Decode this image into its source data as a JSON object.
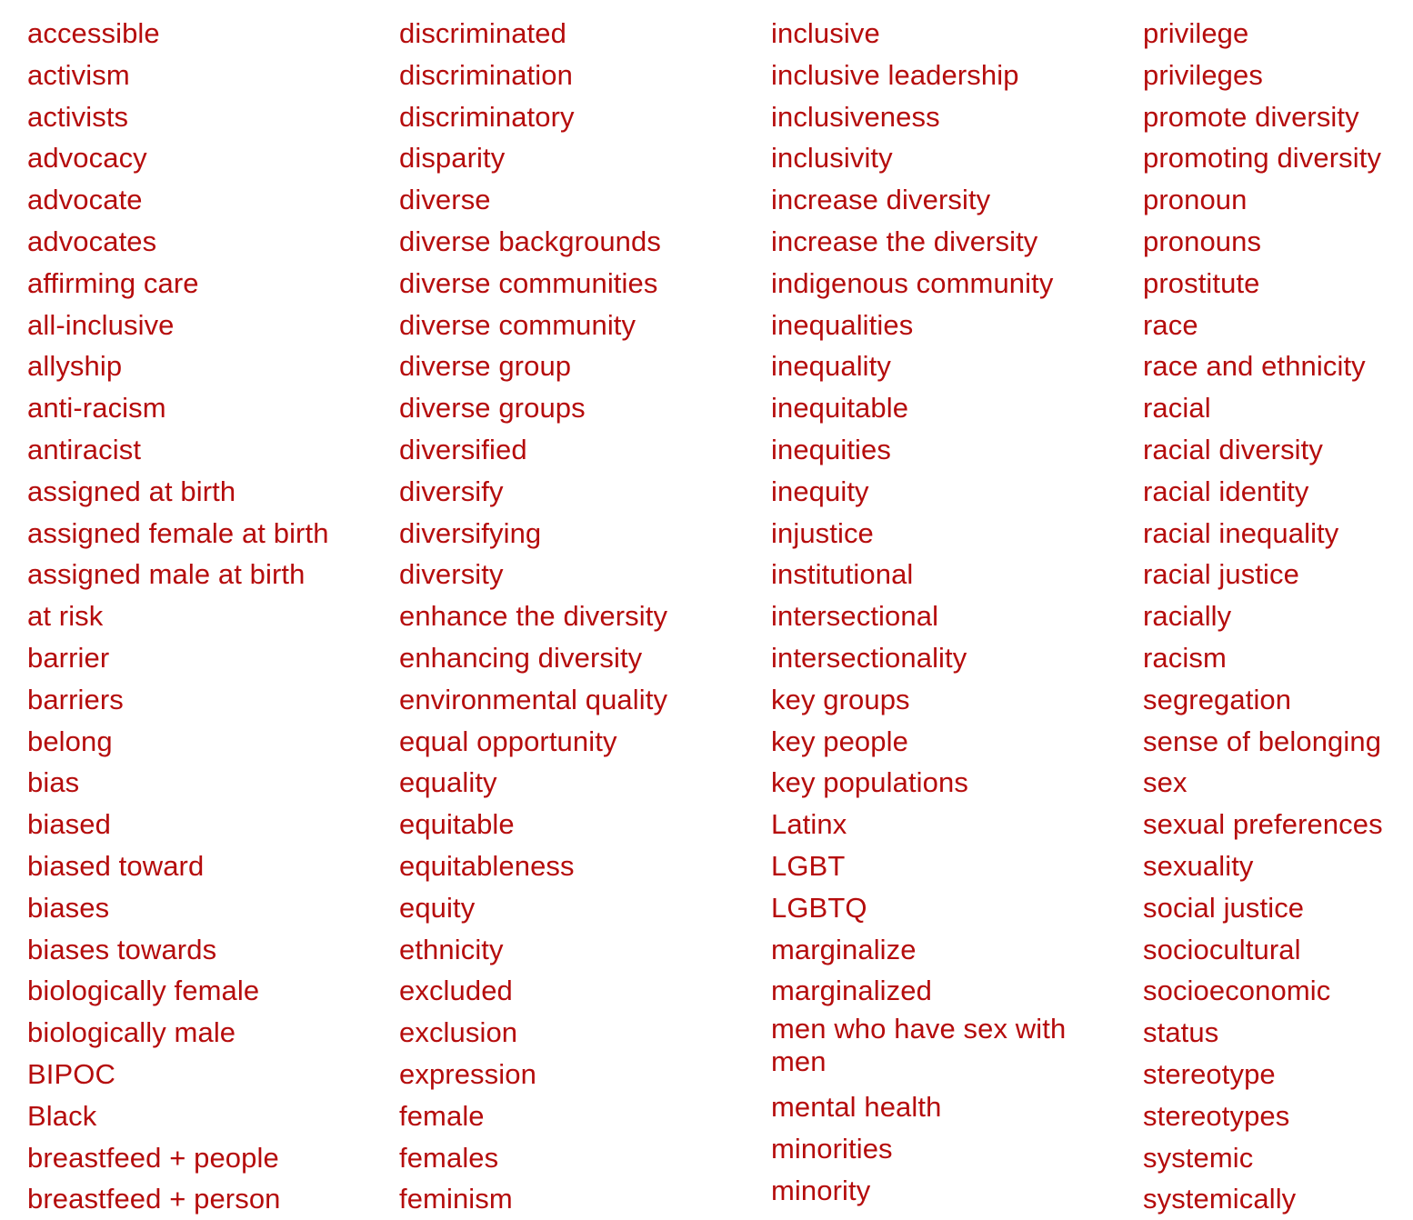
{
  "accent_color": "#b50c0c",
  "columns": [
    {
      "terms": [
        "accessible",
        "activism",
        "activists",
        "advocacy",
        "advocate",
        "advocates",
        "affirming care",
        "all-inclusive",
        "allyship",
        "anti-racism",
        "antiracist",
        "assigned at birth",
        "assigned female at birth",
        "assigned male at birth",
        "at risk",
        "barrier",
        "barriers",
        "belong",
        "bias",
        "biased",
        "biased toward",
        "biases",
        "biases towards",
        "biologically female",
        "biologically male",
        "BIPOC",
        "Black",
        "breastfeed + people",
        "breastfeed + person"
      ]
    },
    {
      "terms": [
        "discriminated",
        "discrimination",
        "discriminatory",
        "disparity",
        "diverse",
        "diverse backgrounds",
        "diverse communities",
        "diverse community",
        "diverse group",
        "diverse groups",
        "diversified",
        "diversify",
        "diversifying",
        "diversity",
        "enhance the diversity",
        "enhancing diversity",
        "environmental quality",
        "equal opportunity",
        "equality",
        "equitable",
        "equitableness",
        "equity",
        "ethnicity",
        "excluded",
        "exclusion",
        "expression",
        "female",
        "females",
        "feminism"
      ]
    },
    {
      "terms": [
        "inclusive",
        "inclusive leadership",
        "inclusiveness",
        "inclusivity",
        "increase diversity",
        "increase the diversity",
        "indigenous community",
        "inequalities",
        "inequality",
        "inequitable",
        "inequities",
        "inequity",
        "injustice",
        "institutional",
        "intersectional",
        "intersectionality",
        "key groups",
        "key people",
        "key populations",
        "Latinx",
        "LGBT",
        "LGBTQ",
        "marginalize",
        "marginalized",
        "men who have sex with men",
        "mental health",
        "minorities",
        "minority"
      ]
    },
    {
      "terms": [
        "privilege",
        "privileges",
        "promote diversity",
        "promoting diversity",
        "pronoun",
        "pronouns",
        "prostitute",
        "race",
        "race and ethnicity",
        "racial",
        "racial diversity",
        "racial identity",
        "racial inequality",
        "racial justice",
        "racially",
        "racism",
        "segregation",
        "sense of belonging",
        "sex",
        "sexual preferences",
        "sexuality",
        "social justice",
        "sociocultural",
        "socioeconomic",
        "status",
        "stereotype",
        "stereotypes",
        "systemic",
        "systemically"
      ]
    }
  ]
}
